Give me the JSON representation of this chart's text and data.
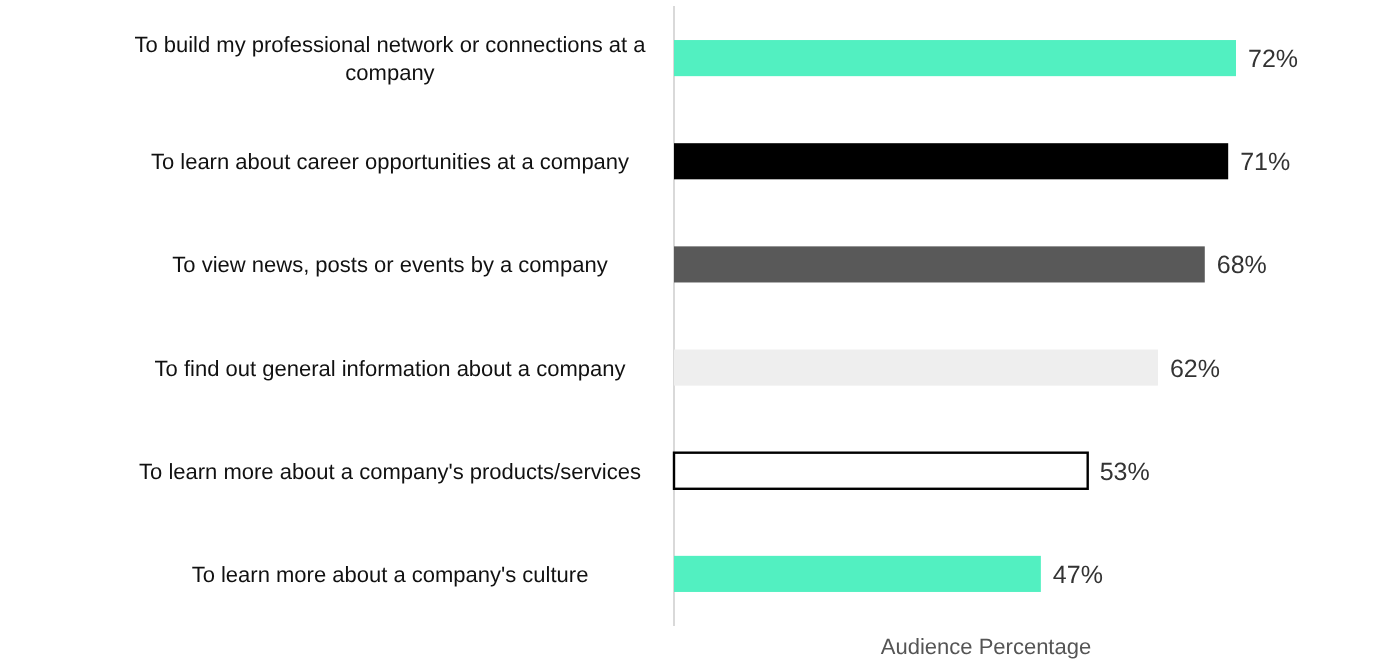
{
  "chart_data": {
    "type": "bar",
    "orientation": "horizontal",
    "xlabel": "Audience Percentage",
    "categories": [
      "To build my professional network or connections at a company",
      "To learn about career opportunities at a company",
      "To view news, posts or events by a company",
      "To find out general information about a company",
      "To learn more about a company's products/services",
      "To learn more about a company's culture"
    ],
    "values": [
      72,
      71,
      68,
      62,
      53,
      47
    ],
    "colors": [
      "#52f0c1",
      "#000000",
      "#595959",
      "#eeeeee",
      "#ffffff",
      "#52f0c1"
    ],
    "value_labels": [
      "72%",
      "71%",
      "68%",
      "62%",
      "53%",
      "47%"
    ]
  }
}
